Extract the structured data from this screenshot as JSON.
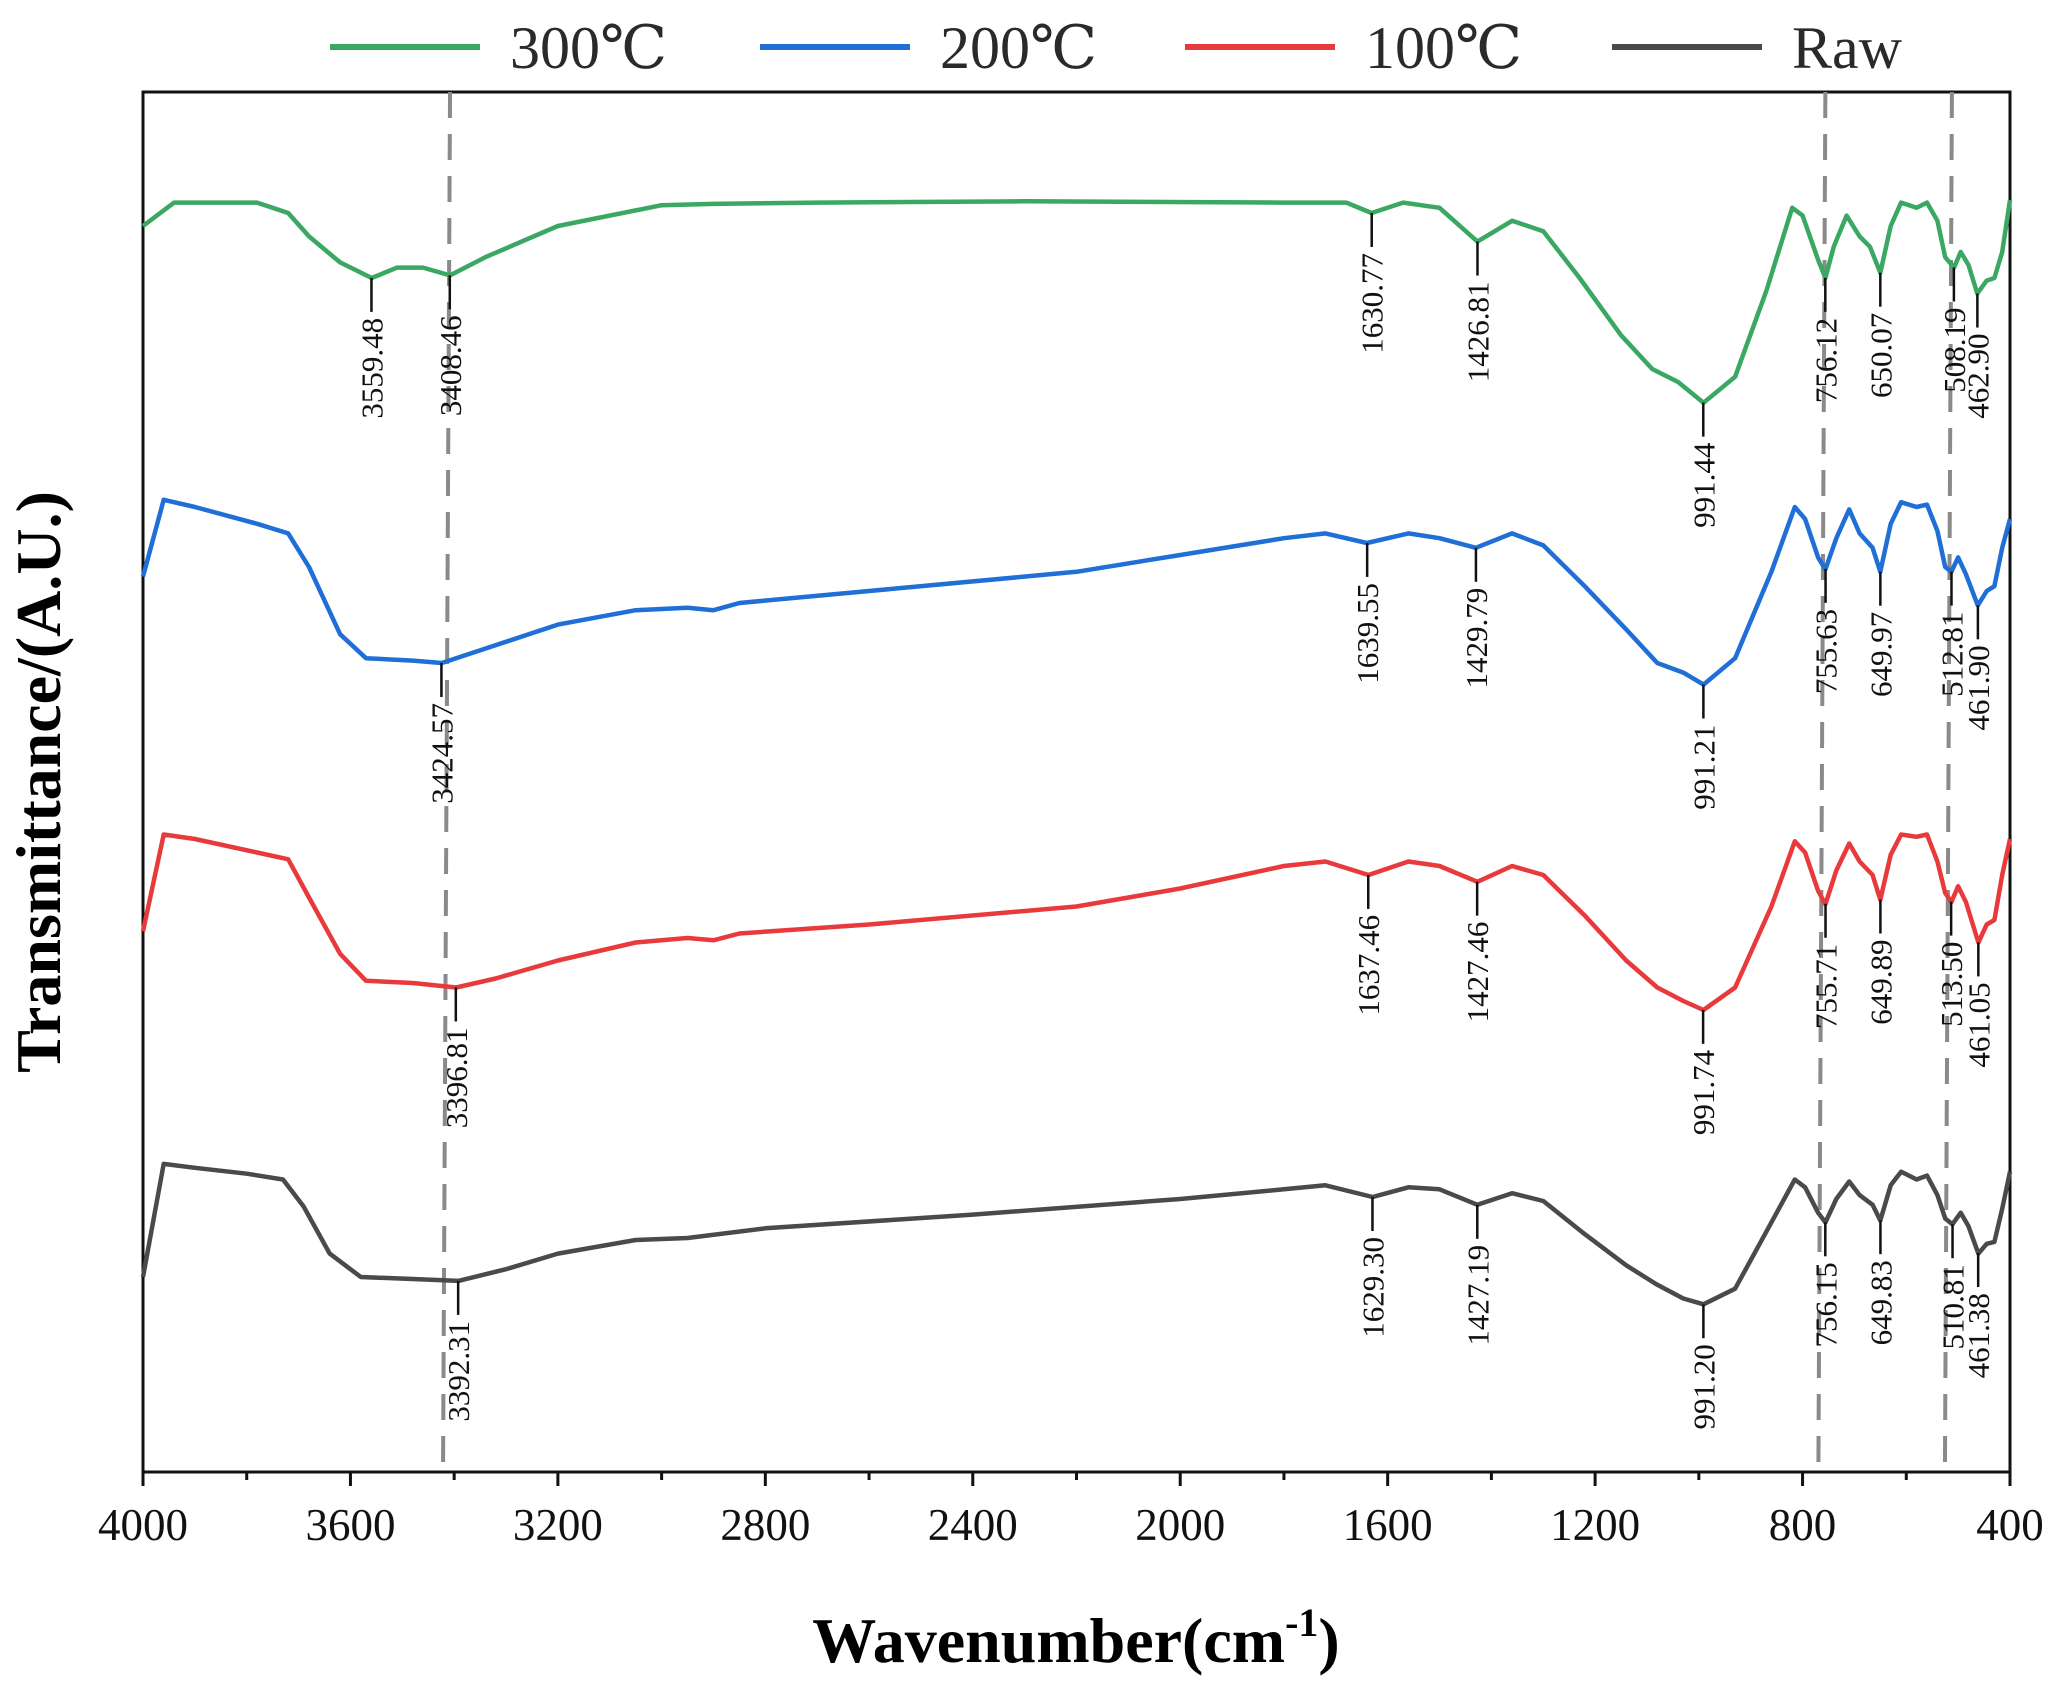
{
  "chart_data": {
    "type": "line",
    "title": "",
    "xlabel": "Wavenumber(cm-1)",
    "xlabel_base": "Wavenumber(cm",
    "xlabel_sup": "-1",
    "xlabel_close": ")",
    "ylabel": "Transmittance/(A.U.)",
    "xlim": [
      4000,
      400
    ],
    "x_reversed": true,
    "x_ticks": [
      4000,
      3600,
      3200,
      2800,
      2400,
      2000,
      1600,
      1200,
      800,
      400
    ],
    "x_tick_labels": [
      "4000",
      "3600",
      "3200",
      "2800",
      "2400",
      "2000",
      "1600",
      "1200",
      "800",
      "400"
    ],
    "y_ticks_shown": false,
    "grid": false,
    "legend_position": "top",
    "reference_lines_wavenumber": [
      3408,
      756,
      512
    ],
    "series": [
      {
        "name": "300℃",
        "color": "#3aa862",
        "label": "300℃",
        "points": [
          [
            4000,
            0.9
          ],
          [
            3940,
            0.99
          ],
          [
            3780,
            0.99
          ],
          [
            3720,
            0.95
          ],
          [
            3680,
            0.86
          ],
          [
            3620,
            0.76
          ],
          [
            3559,
            0.7
          ],
          [
            3510,
            0.74
          ],
          [
            3460,
            0.74
          ],
          [
            3408,
            0.71
          ],
          [
            3340,
            0.78
          ],
          [
            3200,
            0.9
          ],
          [
            3000,
            0.98
          ],
          [
            2900,
            0.985
          ],
          [
            2700,
            0.99
          ],
          [
            2300,
            0.995
          ],
          [
            1800,
            0.99
          ],
          [
            1680,
            0.99
          ],
          [
            1631,
            0.95
          ],
          [
            1570,
            0.99
          ],
          [
            1500,
            0.97
          ],
          [
            1427,
            0.84
          ],
          [
            1360,
            0.92
          ],
          [
            1300,
            0.88
          ],
          [
            1230,
            0.7
          ],
          [
            1150,
            0.48
          ],
          [
            1090,
            0.35
          ],
          [
            1040,
            0.3
          ],
          [
            991,
            0.22
          ],
          [
            930,
            0.32
          ],
          [
            870,
            0.65
          ],
          [
            820,
            0.97
          ],
          [
            800,
            0.94
          ],
          [
            770,
            0.77
          ],
          [
            756,
            0.7
          ],
          [
            740,
            0.82
          ],
          [
            715,
            0.94
          ],
          [
            690,
            0.86
          ],
          [
            670,
            0.82
          ],
          [
            650,
            0.72
          ],
          [
            630,
            0.9
          ],
          [
            610,
            0.99
          ],
          [
            580,
            0.97
          ],
          [
            560,
            0.99
          ],
          [
            540,
            0.92
          ],
          [
            525,
            0.78
          ],
          [
            508,
            0.74
          ],
          [
            495,
            0.8
          ],
          [
            480,
            0.75
          ],
          [
            463,
            0.64
          ],
          [
            445,
            0.69
          ],
          [
            430,
            0.7
          ],
          [
            415,
            0.8
          ],
          [
            400,
            1.0
          ]
        ],
        "peaks": [
          {
            "wn": 3559.48,
            "label": "3559.48",
            "side": "below"
          },
          {
            "wn": 3408.46,
            "label": "3408.46",
            "side": "below"
          },
          {
            "wn": 1630.77,
            "label": "1630.77",
            "side": "below"
          },
          {
            "wn": 1426.81,
            "label": "1426.81",
            "side": "below"
          },
          {
            "wn": 991.44,
            "label": "991.44",
            "side": "below"
          },
          {
            "wn": 756.12,
            "label": "756.12",
            "side": "below"
          },
          {
            "wn": 650.07,
            "label": "650.07",
            "side": "below"
          },
          {
            "wn": 508.19,
            "label": "508.19",
            "side": "below"
          },
          {
            "wn": 462.9,
            "label": "462.90",
            "side": "below"
          }
        ]
      },
      {
        "name": "200℃",
        "color": "#1f6fd6",
        "label": "200℃",
        "points": [
          [
            4000,
            0.66
          ],
          [
            3960,
            0.98
          ],
          [
            3900,
            0.95
          ],
          [
            3780,
            0.88
          ],
          [
            3720,
            0.84
          ],
          [
            3680,
            0.7
          ],
          [
            3620,
            0.42
          ],
          [
            3570,
            0.32
          ],
          [
            3480,
            0.31
          ],
          [
            3424,
            0.3
          ],
          [
            3340,
            0.36
          ],
          [
            3200,
            0.46
          ],
          [
            3050,
            0.52
          ],
          [
            2950,
            0.53
          ],
          [
            2900,
            0.52
          ],
          [
            2850,
            0.55
          ],
          [
            2600,
            0.6
          ],
          [
            2200,
            0.68
          ],
          [
            2000,
            0.75
          ],
          [
            1800,
            0.82
          ],
          [
            1720,
            0.84
          ],
          [
            1640,
            0.8
          ],
          [
            1560,
            0.84
          ],
          [
            1500,
            0.82
          ],
          [
            1430,
            0.78
          ],
          [
            1360,
            0.84
          ],
          [
            1300,
            0.79
          ],
          [
            1220,
            0.62
          ],
          [
            1140,
            0.44
          ],
          [
            1080,
            0.3
          ],
          [
            1030,
            0.26
          ],
          [
            991,
            0.21
          ],
          [
            930,
            0.32
          ],
          [
            860,
            0.68
          ],
          [
            815,
            0.95
          ],
          [
            795,
            0.9
          ],
          [
            770,
            0.74
          ],
          [
            756,
            0.69
          ],
          [
            735,
            0.82
          ],
          [
            710,
            0.94
          ],
          [
            690,
            0.84
          ],
          [
            665,
            0.78
          ],
          [
            650,
            0.68
          ],
          [
            630,
            0.88
          ],
          [
            610,
            0.97
          ],
          [
            580,
            0.95
          ],
          [
            560,
            0.96
          ],
          [
            540,
            0.85
          ],
          [
            525,
            0.7
          ],
          [
            513,
            0.68
          ],
          [
            500,
            0.74
          ],
          [
            485,
            0.67
          ],
          [
            462,
            0.54
          ],
          [
            445,
            0.6
          ],
          [
            430,
            0.62
          ],
          [
            415,
            0.78
          ],
          [
            400,
            0.9
          ]
        ],
        "peaks": [
          {
            "wn": 3424.57,
            "label": "3424.57",
            "side": "below"
          },
          {
            "wn": 1639.55,
            "label": "1639.55",
            "side": "below"
          },
          {
            "wn": 1429.79,
            "label": "1429.79",
            "side": "below"
          },
          {
            "wn": 991.21,
            "label": "991.21",
            "side": "below"
          },
          {
            "wn": 755.63,
            "label": "755.63",
            "side": "below"
          },
          {
            "wn": 649.97,
            "label": "649.97",
            "side": "below"
          },
          {
            "wn": 512.81,
            "label": "512.81",
            "side": "below"
          },
          {
            "wn": 461.9,
            "label": "461.90",
            "side": "below"
          }
        ]
      },
      {
        "name": "100℃",
        "color": "#e83a3c",
        "label": "100℃",
        "points": [
          [
            4000,
            0.55
          ],
          [
            3960,
            0.98
          ],
          [
            3900,
            0.96
          ],
          [
            3780,
            0.9
          ],
          [
            3720,
            0.87
          ],
          [
            3680,
            0.7
          ],
          [
            3620,
            0.45
          ],
          [
            3570,
            0.33
          ],
          [
            3480,
            0.32
          ],
          [
            3396,
            0.3
          ],
          [
            3320,
            0.34
          ],
          [
            3200,
            0.42
          ],
          [
            3050,
            0.5
          ],
          [
            2950,
            0.52
          ],
          [
            2900,
            0.51
          ],
          [
            2850,
            0.54
          ],
          [
            2600,
            0.58
          ],
          [
            2200,
            0.66
          ],
          [
            2000,
            0.74
          ],
          [
            1800,
            0.84
          ],
          [
            1720,
            0.86
          ],
          [
            1637,
            0.8
          ],
          [
            1560,
            0.86
          ],
          [
            1500,
            0.84
          ],
          [
            1427,
            0.77
          ],
          [
            1360,
            0.84
          ],
          [
            1300,
            0.8
          ],
          [
            1220,
            0.62
          ],
          [
            1140,
            0.42
          ],
          [
            1080,
            0.3
          ],
          [
            1030,
            0.24
          ],
          [
            991,
            0.2
          ],
          [
            930,
            0.3
          ],
          [
            860,
            0.66
          ],
          [
            815,
            0.95
          ],
          [
            795,
            0.9
          ],
          [
            770,
            0.73
          ],
          [
            756,
            0.67
          ],
          [
            735,
            0.82
          ],
          [
            710,
            0.94
          ],
          [
            690,
            0.86
          ],
          [
            665,
            0.8
          ],
          [
            650,
            0.69
          ],
          [
            630,
            0.89
          ],
          [
            610,
            0.98
          ],
          [
            580,
            0.97
          ],
          [
            560,
            0.98
          ],
          [
            540,
            0.86
          ],
          [
            525,
            0.72
          ],
          [
            513,
            0.68
          ],
          [
            500,
            0.75
          ],
          [
            485,
            0.68
          ],
          [
            461,
            0.5
          ],
          [
            445,
            0.58
          ],
          [
            430,
            0.6
          ],
          [
            415,
            0.8
          ],
          [
            400,
            0.96
          ]
        ],
        "peaks": [
          {
            "wn": 3396.81,
            "label": "3396.81",
            "side": "below"
          },
          {
            "wn": 1637.46,
            "label": "1637.46",
            "side": "below"
          },
          {
            "wn": 1427.46,
            "label": "1427.46",
            "side": "below"
          },
          {
            "wn": 991.74,
            "label": "991.74",
            "side": "below"
          },
          {
            "wn": 755.71,
            "label": "755.71",
            "side": "below"
          },
          {
            "wn": 649.89,
            "label": "649.89",
            "side": "below"
          },
          {
            "wn": 513.5,
            "label": "513.50",
            "side": "below"
          },
          {
            "wn": 461.05,
            "label": "461.05",
            "side": "below"
          }
        ]
      },
      {
        "name": "Raw",
        "color": "#4a4a4a",
        "label": "Raw",
        "points": [
          [
            4000,
            0.4
          ],
          [
            3960,
            0.98
          ],
          [
            3900,
            0.96
          ],
          [
            3800,
            0.93
          ],
          [
            3730,
            0.9
          ],
          [
            3690,
            0.76
          ],
          [
            3640,
            0.52
          ],
          [
            3580,
            0.4
          ],
          [
            3480,
            0.39
          ],
          [
            3392,
            0.38
          ],
          [
            3300,
            0.44
          ],
          [
            3200,
            0.52
          ],
          [
            3050,
            0.59
          ],
          [
            2950,
            0.6
          ],
          [
            2800,
            0.65
          ],
          [
            2400,
            0.72
          ],
          [
            2000,
            0.8
          ],
          [
            1800,
            0.85
          ],
          [
            1720,
            0.87
          ],
          [
            1629,
            0.81
          ],
          [
            1560,
            0.86
          ],
          [
            1500,
            0.85
          ],
          [
            1427,
            0.77
          ],
          [
            1360,
            0.83
          ],
          [
            1300,
            0.79
          ],
          [
            1220,
            0.62
          ],
          [
            1140,
            0.46
          ],
          [
            1080,
            0.36
          ],
          [
            1030,
            0.29
          ],
          [
            991,
            0.26
          ],
          [
            930,
            0.34
          ],
          [
            860,
            0.68
          ],
          [
            815,
            0.9
          ],
          [
            795,
            0.86
          ],
          [
            770,
            0.73
          ],
          [
            756,
            0.68
          ],
          [
            735,
            0.8
          ],
          [
            710,
            0.89
          ],
          [
            690,
            0.82
          ],
          [
            665,
            0.77
          ],
          [
            650,
            0.69
          ],
          [
            630,
            0.87
          ],
          [
            610,
            0.94
          ],
          [
            580,
            0.9
          ],
          [
            560,
            0.92
          ],
          [
            540,
            0.82
          ],
          [
            525,
            0.7
          ],
          [
            511,
            0.67
          ],
          [
            495,
            0.73
          ],
          [
            480,
            0.66
          ],
          [
            461,
            0.52
          ],
          [
            445,
            0.57
          ],
          [
            430,
            0.58
          ],
          [
            415,
            0.75
          ],
          [
            400,
            0.94
          ]
        ],
        "peaks": [
          {
            "wn": 3392.31,
            "label": "3392.31",
            "side": "below"
          },
          {
            "wn": 1629.3,
            "label": "1629.30",
            "side": "below"
          },
          {
            "wn": 1427.19,
            "label": "1427.19",
            "side": "below"
          },
          {
            "wn": 991.2,
            "label": "991.20",
            "side": "below"
          },
          {
            "wn": 756.15,
            "label": "756.15",
            "side": "below"
          },
          {
            "wn": 649.83,
            "label": "649.83",
            "side": "below"
          },
          {
            "wn": 510.81,
            "label": "510.81",
            "side": "below"
          },
          {
            "wn": 461.38,
            "label": "461.38",
            "side": "below"
          }
        ]
      }
    ]
  }
}
